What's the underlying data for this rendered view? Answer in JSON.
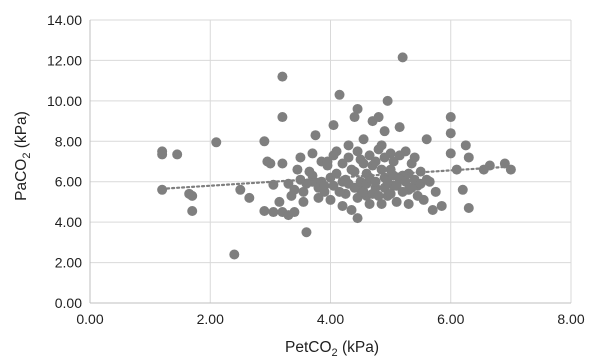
{
  "chart_data": {
    "type": "scatter",
    "title": "",
    "xlabel": "PetCO",
    "xlabel_sub": "2",
    "xlabel_suffix": " (kPa)",
    "ylabel": "PaCO",
    "ylabel_sub": "2",
    "ylabel_suffix": " (kPa)",
    "xlim": [
      0,
      8
    ],
    "ylim": [
      0,
      14
    ],
    "x_ticks": [
      0,
      2,
      4,
      6,
      8
    ],
    "y_ticks": [
      0,
      2,
      4,
      6,
      8,
      10,
      12,
      14
    ],
    "x_tick_labels": [
      "0.00",
      "2.00",
      "4.00",
      "6.00",
      "8.00"
    ],
    "y_tick_labels": [
      "0.00",
      "2.00",
      "4.00",
      "6.00",
      "8.00",
      "10.00",
      "12.00",
      "14.00"
    ],
    "grid": true,
    "point_color": "#7f7f7f",
    "trendline": {
      "style": "dotted",
      "color": "#7f7f7f",
      "x": [
        1.2,
        7.0
      ],
      "y": [
        5.65,
        6.75
      ]
    },
    "points": [
      [
        1.2,
        7.5
      ],
      [
        1.2,
        7.35
      ],
      [
        1.45,
        7.35
      ],
      [
        1.2,
        5.6
      ],
      [
        1.65,
        5.4
      ],
      [
        1.7,
        5.3
      ],
      [
        1.7,
        4.55
      ],
      [
        2.1,
        7.95
      ],
      [
        2.4,
        2.4
      ],
      [
        2.5,
        5.6
      ],
      [
        2.65,
        5.2
      ],
      [
        2.9,
        8.0
      ],
      [
        2.95,
        7.0
      ],
      [
        3.0,
        6.9
      ],
      [
        3.05,
        5.85
      ],
      [
        2.9,
        4.55
      ],
      [
        3.05,
        4.5
      ],
      [
        3.2,
        11.2
      ],
      [
        3.2,
        9.2
      ],
      [
        3.2,
        6.9
      ],
      [
        3.15,
        5.0
      ],
      [
        3.2,
        4.5
      ],
      [
        3.3,
        4.35
      ],
      [
        3.35,
        5.3
      ],
      [
        3.4,
        4.5
      ],
      [
        3.45,
        6.6
      ],
      [
        3.5,
        7.2
      ],
      [
        3.55,
        5.0
      ],
      [
        3.6,
        3.5
      ],
      [
        3.65,
        6.5
      ],
      [
        3.7,
        6.0
      ],
      [
        3.75,
        8.3
      ],
      [
        3.8,
        5.7
      ],
      [
        3.85,
        7.0
      ],
      [
        3.9,
        5.5
      ],
      [
        3.95,
        6.8
      ],
      [
        4.0,
        6.2
      ],
      [
        4.05,
        8.8
      ],
      [
        4.1,
        7.5
      ],
      [
        4.15,
        10.3
      ],
      [
        4.2,
        6.0
      ],
      [
        4.2,
        4.8
      ],
      [
        4.25,
        5.4
      ],
      [
        4.3,
        7.8
      ],
      [
        4.35,
        4.6
      ],
      [
        4.4,
        9.2
      ],
      [
        4.4,
        6.5
      ],
      [
        4.45,
        9.6
      ],
      [
        4.45,
        4.2
      ],
      [
        4.5,
        5.6
      ],
      [
        4.5,
        7.1
      ],
      [
        4.55,
        8.1
      ],
      [
        4.6,
        5.3
      ],
      [
        4.6,
        6.4
      ],
      [
        4.65,
        4.9
      ],
      [
        4.7,
        9.0
      ],
      [
        4.7,
        6.8
      ],
      [
        4.75,
        5.7
      ],
      [
        4.8,
        9.2
      ],
      [
        4.8,
        7.6
      ],
      [
        4.85,
        4.9
      ],
      [
        4.9,
        8.5
      ],
      [
        4.9,
        6.2
      ],
      [
        4.95,
        10.0
      ],
      [
        4.95,
        5.3
      ],
      [
        5.0,
        7.4
      ],
      [
        5.0,
        6.6
      ],
      [
        5.05,
        5.8
      ],
      [
        5.1,
        5.0
      ],
      [
        5.15,
        8.7
      ],
      [
        5.2,
        12.15
      ],
      [
        5.2,
        6.3
      ],
      [
        5.25,
        7.5
      ],
      [
        5.3,
        5.6
      ],
      [
        5.3,
        4.9
      ],
      [
        5.35,
        6.9
      ],
      [
        5.4,
        7.2
      ],
      [
        5.45,
        5.8
      ],
      [
        5.5,
        6.5
      ],
      [
        5.55,
        5.1
      ],
      [
        5.6,
        8.1
      ],
      [
        5.65,
        6.0
      ],
      [
        5.7,
        4.6
      ],
      [
        5.75,
        5.5
      ],
      [
        5.85,
        4.8
      ],
      [
        6.0,
        9.2
      ],
      [
        6.0,
        8.4
      ],
      [
        6.0,
        7.4
      ],
      [
        6.1,
        6.6
      ],
      [
        6.2,
        5.6
      ],
      [
        6.25,
        7.8
      ],
      [
        6.3,
        7.2
      ],
      [
        6.3,
        4.7
      ],
      [
        6.55,
        6.6
      ],
      [
        6.65,
        6.8
      ],
      [
        6.9,
        6.9
      ],
      [
        7.0,
        6.6
      ],
      [
        3.3,
        5.9
      ],
      [
        3.4,
        5.6
      ],
      [
        3.5,
        6.1
      ],
      [
        3.55,
        5.5
      ],
      [
        3.6,
        5.9
      ],
      [
        3.7,
        6.3
      ],
      [
        3.8,
        5.2
      ],
      [
        3.85,
        6.0
      ],
      [
        3.9,
        5.8
      ],
      [
        4.0,
        5.1
      ],
      [
        4.05,
        5.8
      ],
      [
        4.1,
        6.4
      ],
      [
        4.15,
        5.5
      ],
      [
        4.25,
        6.1
      ],
      [
        4.3,
        5.9
      ],
      [
        4.35,
        6.6
      ],
      [
        4.4,
        5.7
      ],
      [
        4.45,
        5.2
      ],
      [
        4.5,
        6.0
      ],
      [
        4.55,
        5.5
      ],
      [
        4.6,
        5.9
      ],
      [
        4.65,
        6.2
      ],
      [
        4.7,
        5.4
      ],
      [
        4.75,
        6.0
      ],
      [
        4.8,
        5.3
      ],
      [
        4.85,
        6.6
      ],
      [
        4.9,
        5.7
      ],
      [
        4.95,
        6.0
      ],
      [
        5.0,
        5.4
      ],
      [
        5.05,
        6.3
      ],
      [
        5.1,
        5.8
      ],
      [
        5.15,
        6.1
      ],
      [
        5.2,
        5.5
      ],
      [
        5.25,
        6.0
      ],
      [
        5.3,
        6.4
      ],
      [
        5.35,
        5.7
      ],
      [
        5.4,
        6.1
      ],
      [
        5.45,
        5.3
      ],
      [
        5.5,
        5.9
      ],
      [
        5.6,
        6.1
      ],
      [
        4.2,
        6.9
      ],
      [
        4.3,
        7.2
      ],
      [
        4.45,
        7.5
      ],
      [
        4.55,
        6.9
      ],
      [
        4.65,
        7.3
      ],
      [
        4.75,
        7.0
      ],
      [
        4.85,
        7.8
      ],
      [
        4.9,
        7.2
      ],
      [
        5.05,
        7.0
      ],
      [
        5.15,
        7.3
      ],
      [
        3.7,
        7.4
      ],
      [
        3.95,
        7.0
      ],
      [
        4.05,
        7.3
      ]
    ]
  }
}
